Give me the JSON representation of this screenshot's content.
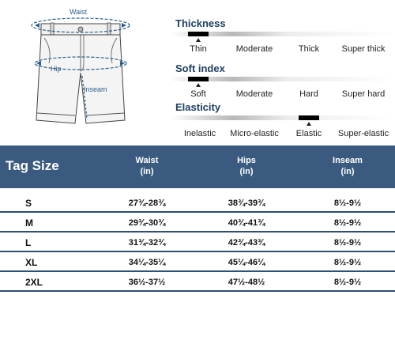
{
  "illustration": {
    "waist_label": "Waist",
    "hip_label": "Hip",
    "inseam_label": "Inseam"
  },
  "attributes": [
    {
      "title": "Thickness",
      "options": [
        "Thin",
        "Moderate",
        "Thick",
        "Super thick"
      ],
      "selected": "Thin"
    },
    {
      "title": "Soft index",
      "options": [
        "Soft",
        "Moderate",
        "Hard",
        "Super hard"
      ],
      "selected": "Soft"
    },
    {
      "title": "Elasticity",
      "options": [
        "Inelastic",
        "Micro-elastic",
        "Elastic",
        "Super-elastic"
      ],
      "selected": "Elastic"
    }
  ],
  "table": {
    "tag_header": "Tag Size",
    "columns": [
      {
        "name": "Waist",
        "unit": "(in)"
      },
      {
        "name": "Hips",
        "unit": "(in)"
      },
      {
        "name": "Inseam",
        "unit": "(in)"
      }
    ],
    "rows": [
      {
        "size": "S",
        "waist": "27¾-28¾",
        "hips": "38¾-39¾",
        "inseam": "8½-9½"
      },
      {
        "size": "M",
        "waist": "29¾-30¾",
        "hips": "40¾-41¾",
        "inseam": "8½-9½"
      },
      {
        "size": "L",
        "waist": "31¾-32¾",
        "hips": "42¾-43¾",
        "inseam": "8½-9½"
      },
      {
        "size": "XL",
        "waist": "34¼-35¼",
        "hips": "45¼-46¼",
        "inseam": "8½-9½"
      },
      {
        "size": "2XL",
        "waist": "36½-37½",
        "hips": "47½-48½",
        "inseam": "8½-9½"
      }
    ]
  },
  "colors": {
    "header_bg": "#3a5a7f",
    "accent_title": "#1f3f63",
    "measure_line": "#2c5f8a"
  }
}
